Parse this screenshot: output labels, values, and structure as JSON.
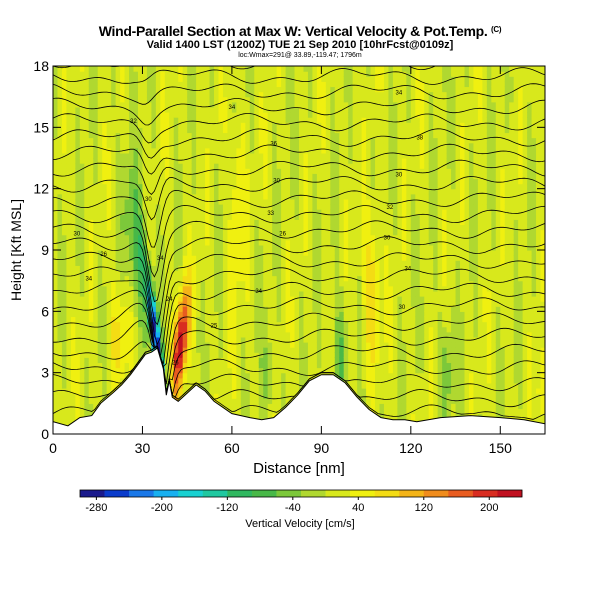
{
  "header": {
    "title": "Wind-Parallel Section at Max W: Vertical Velocity & Pot.Temp.",
    "copyright": "(C)",
    "valid_line": "Valid 1400 LST (1200Z) TUE 21 Sep 2010 [10hrFcst@0109z]",
    "location_line": "loc:Wmax=291@ 33.89,-119.47; 1796m"
  },
  "chart_data": {
    "type": "heatmap",
    "xlabel": "Distance [nm]",
    "ylabel": "Height [Kft MSL]",
    "xlim": [
      0,
      165
    ],
    "ylim": [
      0,
      18
    ],
    "x_ticks": [
      0,
      30,
      60,
      90,
      120,
      150
    ],
    "y_ticks": [
      0,
      3,
      6,
      9,
      12,
      15,
      18
    ],
    "colorbar": {
      "label": "Vertical Velocity [cm/s]",
      "tick_labels": [
        -280,
        -200,
        -120,
        -40,
        40,
        120,
        200
      ],
      "range": [
        -300,
        240
      ],
      "colors": [
        "#1a1a8c",
        "#0a3ccc",
        "#1a78e8",
        "#18b0f0",
        "#18d0d0",
        "#20c8a0",
        "#30b860",
        "#48b848",
        "#7cc83a",
        "#b0d830",
        "#d8e81c",
        "#f0f010",
        "#f4dc14",
        "#f4b418",
        "#f08c1c",
        "#e85c20",
        "#d82c20",
        "#c01020"
      ]
    },
    "terrain_kft": [
      [
        0,
        0.6
      ],
      [
        5,
        0.4
      ],
      [
        9,
        0.8
      ],
      [
        13,
        0.9
      ],
      [
        16,
        1.5
      ],
      [
        20,
        2.0
      ],
      [
        23,
        2.4
      ],
      [
        26,
        2.9
      ],
      [
        29,
        3.5
      ],
      [
        31,
        3.9
      ],
      [
        33,
        4.0
      ],
      [
        35,
        4.2
      ],
      [
        37,
        3.2
      ],
      [
        38,
        1.9
      ],
      [
        39,
        2.6
      ],
      [
        40,
        1.8
      ],
      [
        42,
        1.6
      ],
      [
        45,
        2.0
      ],
      [
        48,
        2.4
      ],
      [
        51,
        2.1
      ],
      [
        54,
        1.6
      ],
      [
        57,
        1.3
      ],
      [
        60,
        1.0
      ],
      [
        63,
        0.9
      ],
      [
        66,
        0.8
      ],
      [
        70,
        0.7
      ],
      [
        74,
        0.8
      ],
      [
        78,
        1.3
      ],
      [
        82,
        1.9
      ],
      [
        86,
        2.6
      ],
      [
        90,
        2.9
      ],
      [
        94,
        2.9
      ],
      [
        98,
        2.5
      ],
      [
        102,
        1.8
      ],
      [
        106,
        1.2
      ],
      [
        110,
        0.8
      ],
      [
        114,
        0.7
      ],
      [
        118,
        0.7
      ],
      [
        122,
        0.6
      ],
      [
        130,
        0.8
      ],
      [
        140,
        0.9
      ],
      [
        150,
        0.8
      ],
      [
        158,
        0.7
      ],
      [
        165,
        0.5
      ]
    ],
    "contour_labels": [
      {
        "text": "30",
        "x": 8,
        "y": 9.8
      },
      {
        "text": "34",
        "x": 12,
        "y": 7.6
      },
      {
        "text": "26",
        "x": 17,
        "y": 8.8
      },
      {
        "text": "32",
        "x": 27,
        "y": 15.3
      },
      {
        "text": "30",
        "x": 32,
        "y": 11.5
      },
      {
        "text": "34",
        "x": 36,
        "y": 8.6
      },
      {
        "text": "24",
        "x": 39,
        "y": 6.6
      },
      {
        "text": "26",
        "x": 41,
        "y": 3.5
      },
      {
        "text": "34",
        "x": 60,
        "y": 16.0
      },
      {
        "text": "36",
        "x": 74,
        "y": 14.2
      },
      {
        "text": "30",
        "x": 75,
        "y": 12.4
      },
      {
        "text": "33",
        "x": 73,
        "y": 10.8
      },
      {
        "text": "26",
        "x": 77,
        "y": 9.8
      },
      {
        "text": "34",
        "x": 69,
        "y": 7.0
      },
      {
        "text": "25",
        "x": 54,
        "y": 5.3
      },
      {
        "text": "34",
        "x": 116,
        "y": 16.7
      },
      {
        "text": "38",
        "x": 123,
        "y": 14.5
      },
      {
        "text": "30",
        "x": 116,
        "y": 12.7
      },
      {
        "text": "32",
        "x": 113,
        "y": 11.1
      },
      {
        "text": "30",
        "x": 112,
        "y": 9.6
      },
      {
        "text": "34",
        "x": 119,
        "y": 8.1
      },
      {
        "text": "30",
        "x": 117,
        "y": 6.2
      }
    ]
  }
}
